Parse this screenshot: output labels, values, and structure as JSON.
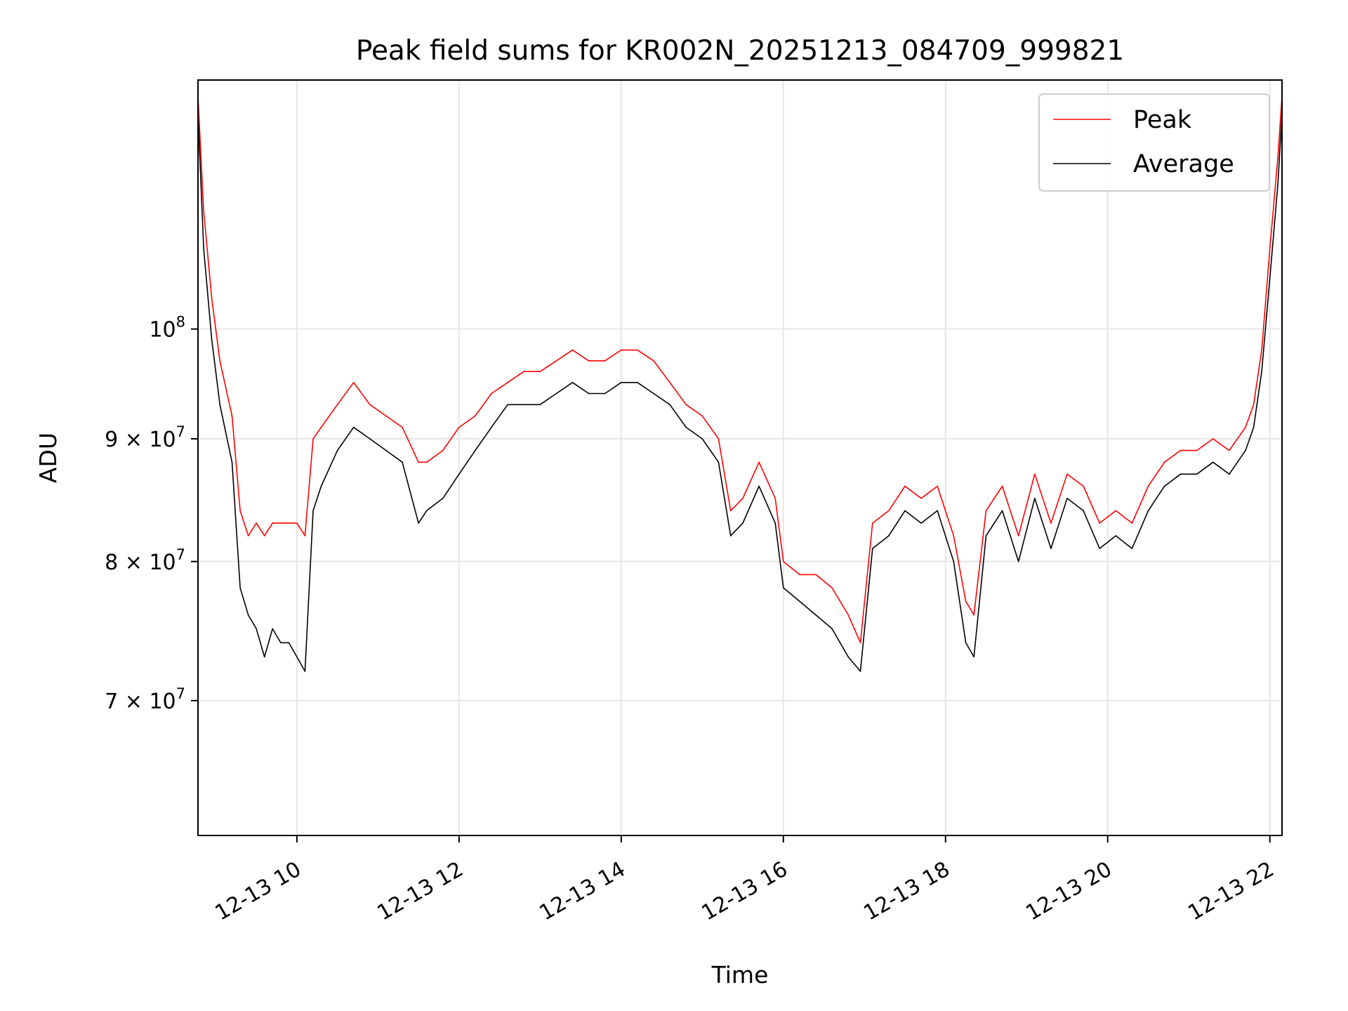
{
  "chart_data": {
    "type": "line",
    "title": "Peak field sums for KR002N_20251213_084709_999821",
    "xlabel": "Time",
    "ylabel": "ADU",
    "yscale": "log",
    "ylim": [
      61500000,
      127000000
    ],
    "xlim": [
      8.78,
      22.15
    ],
    "grid": true,
    "legend_position": "top-right",
    "x_ticks": [
      {
        "value": 10,
        "label": "12-13 10"
      },
      {
        "value": 12,
        "label": "12-13 12"
      },
      {
        "value": 14,
        "label": "12-13 14"
      },
      {
        "value": 16,
        "label": "12-13 16"
      },
      {
        "value": 18,
        "label": "12-13 18"
      },
      {
        "value": 20,
        "label": "12-13 20"
      },
      {
        "value": 22,
        "label": "12-13 22"
      }
    ],
    "y_ticks": [
      {
        "value": 70000000,
        "mantissa": "7",
        "base": "10",
        "exp": "7"
      },
      {
        "value": 80000000,
        "mantissa": "8",
        "base": "10",
        "exp": "7"
      },
      {
        "value": 90000000,
        "mantissa": "9",
        "base": "10",
        "exp": "7"
      },
      {
        "value": 100000000,
        "mantissa": "",
        "base": "10",
        "exp": "8"
      }
    ],
    "series": [
      {
        "name": "Peak",
        "color": "#ff0000",
        "x": [
          8.78,
          8.85,
          8.95,
          9.05,
          9.2,
          9.3,
          9.4,
          9.5,
          9.6,
          9.7,
          9.8,
          9.9,
          10.0,
          10.1,
          10.2,
          10.3,
          10.5,
          10.7,
          10.9,
          11.1,
          11.3,
          11.5,
          11.6,
          11.8,
          12.0,
          12.2,
          12.4,
          12.6,
          12.8,
          13.0,
          13.2,
          13.4,
          13.6,
          13.8,
          14.0,
          14.2,
          14.4,
          14.6,
          14.8,
          15.0,
          15.2,
          15.35,
          15.5,
          15.7,
          15.9,
          16.0,
          16.2,
          16.4,
          16.6,
          16.8,
          16.95,
          17.1,
          17.3,
          17.5,
          17.7,
          17.9,
          18.1,
          18.25,
          18.35,
          18.5,
          18.7,
          18.9,
          19.1,
          19.3,
          19.5,
          19.7,
          19.9,
          20.1,
          20.3,
          20.5,
          20.7,
          20.9,
          21.1,
          21.3,
          21.5,
          21.7,
          21.8,
          21.9,
          22.0,
          22.1,
          22.15
        ],
        "y": [
          125000000,
          112000000,
          103000000,
          97000000,
          92000000,
          84000000,
          82000000,
          83000000,
          82000000,
          83000000,
          83000000,
          83000000,
          83000000,
          82000000,
          90000000,
          91000000,
          93000000,
          95000000,
          93000000,
          92000000,
          91000000,
          88000000,
          88000000,
          89000000,
          91000000,
          92000000,
          94000000,
          95000000,
          96000000,
          96000000,
          97000000,
          98000000,
          97000000,
          97000000,
          98000000,
          98000000,
          97000000,
          95000000,
          93000000,
          92000000,
          90000000,
          84000000,
          85000000,
          88000000,
          85000000,
          80000000,
          79000000,
          79000000,
          78000000,
          76000000,
          74000000,
          83000000,
          84000000,
          86000000,
          85000000,
          86000000,
          82000000,
          77000000,
          76000000,
          84000000,
          86000000,
          82000000,
          87000000,
          83000000,
          87000000,
          86000000,
          83000000,
          84000000,
          83000000,
          86000000,
          88000000,
          89000000,
          89000000,
          90000000,
          89000000,
          91000000,
          93000000,
          98000000,
          108000000,
          118000000,
          125000000
        ]
      },
      {
        "name": "Average",
        "color": "#000000",
        "x": [
          8.78,
          8.85,
          8.95,
          9.05,
          9.2,
          9.3,
          9.4,
          9.5,
          9.6,
          9.7,
          9.8,
          9.9,
          10.0,
          10.1,
          10.2,
          10.3,
          10.5,
          10.7,
          10.9,
          11.1,
          11.3,
          11.5,
          11.6,
          11.8,
          12.0,
          12.2,
          12.4,
          12.6,
          12.8,
          13.0,
          13.2,
          13.4,
          13.6,
          13.8,
          14.0,
          14.2,
          14.4,
          14.6,
          14.8,
          15.0,
          15.2,
          15.35,
          15.5,
          15.7,
          15.9,
          16.0,
          16.2,
          16.4,
          16.6,
          16.8,
          16.95,
          17.1,
          17.3,
          17.5,
          17.7,
          17.9,
          18.1,
          18.25,
          18.35,
          18.5,
          18.7,
          18.9,
          19.1,
          19.3,
          19.5,
          19.7,
          19.9,
          20.1,
          20.3,
          20.5,
          20.7,
          20.9,
          21.1,
          21.3,
          21.5,
          21.7,
          21.8,
          21.9,
          22.0,
          22.1,
          22.15
        ],
        "y": [
          123000000,
          108000000,
          99000000,
          93000000,
          88000000,
          78000000,
          76000000,
          75000000,
          73000000,
          75000000,
          74000000,
          74000000,
          73000000,
          72000000,
          84000000,
          86000000,
          89000000,
          91000000,
          90000000,
          89000000,
          88000000,
          83000000,
          84000000,
          85000000,
          87000000,
          89000000,
          91000000,
          93000000,
          93000000,
          93000000,
          94000000,
          95000000,
          94000000,
          94000000,
          95000000,
          95000000,
          94000000,
          93000000,
          91000000,
          90000000,
          88000000,
          82000000,
          83000000,
          86000000,
          83000000,
          78000000,
          77000000,
          76000000,
          75000000,
          73000000,
          72000000,
          81000000,
          82000000,
          84000000,
          83000000,
          84000000,
          80000000,
          74000000,
          73000000,
          82000000,
          84000000,
          80000000,
          85000000,
          81000000,
          85000000,
          84000000,
          81000000,
          82000000,
          81000000,
          84000000,
          86000000,
          87000000,
          87000000,
          88000000,
          87000000,
          89000000,
          91000000,
          96000000,
          105000000,
          115000000,
          123000000
        ]
      }
    ],
    "annotations": []
  }
}
